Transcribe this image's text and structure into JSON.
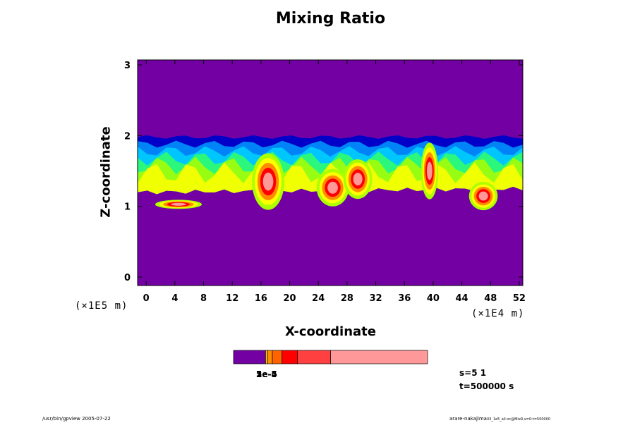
{
  "chart_data": {
    "type": "heatmap",
    "title": "Mixing Ratio",
    "xlabel": "X-coordinate",
    "ylabel": "Z-coordinate",
    "x_unit": "(×1E4 m)",
    "y_unit": "(×1E5 m)",
    "xlim": [
      -1.2,
      52.5
    ],
    "ylim": [
      -0.12,
      3.07
    ],
    "x_ticks": [
      0,
      4,
      8,
      12,
      16,
      20,
      24,
      28,
      32,
      36,
      40,
      44,
      48,
      52
    ],
    "y_ticks": [
      0,
      1,
      2,
      3
    ],
    "background_color": "#7300a3",
    "layer": {
      "top": 1.98,
      "bottom_left": 1.2,
      "bottom_right": 1.25,
      "colors": [
        "#0000c8",
        "#009aff",
        "#00d2ff",
        "#33ff66",
        "#aaff00",
        "#ffff00"
      ]
    },
    "plumes": [
      {
        "x": 4.5,
        "z": 1.02,
        "width": 6.5,
        "height": 0.08
      },
      {
        "x": 17.0,
        "z": 1.3,
        "width": 4.5,
        "height": 0.5
      },
      {
        "x": 26.0,
        "z": 1.23,
        "width": 4.5,
        "height": 0.33
      },
      {
        "x": 29.5,
        "z": 1.35,
        "width": 4.0,
        "height": 0.35
      },
      {
        "x": 39.5,
        "z": 1.45,
        "width": 2.4,
        "height": 0.5
      },
      {
        "x": 47.0,
        "z": 1.12,
        "width": 4.0,
        "height": 0.25
      }
    ],
    "colorbar": {
      "colors": [
        "#7300a3",
        "#ffd200",
        "#ff8c00",
        "#ff6400",
        "#ff0000",
        "#ff4040",
        "#ff9999"
      ],
      "bounds": [
        0,
        0.165,
        0.175,
        0.2,
        0.25,
        0.33,
        0.5,
        1.0
      ],
      "labels": [
        "1e-5",
        "2e-5",
        "5e-5",
        "1e-4"
      ]
    }
  },
  "info": {
    "s": "s=5 1",
    "t": "t=500000 s"
  },
  "footer": {
    "left": "/usr/bin/gpview 2005-07-22",
    "right_main": "arare-nakajima",
    "right_small": "03_1e5_all.nc@MixR,x=0:t=500000"
  },
  "colors": {
    "background": "#7300a3",
    "high": "#ff0000"
  }
}
